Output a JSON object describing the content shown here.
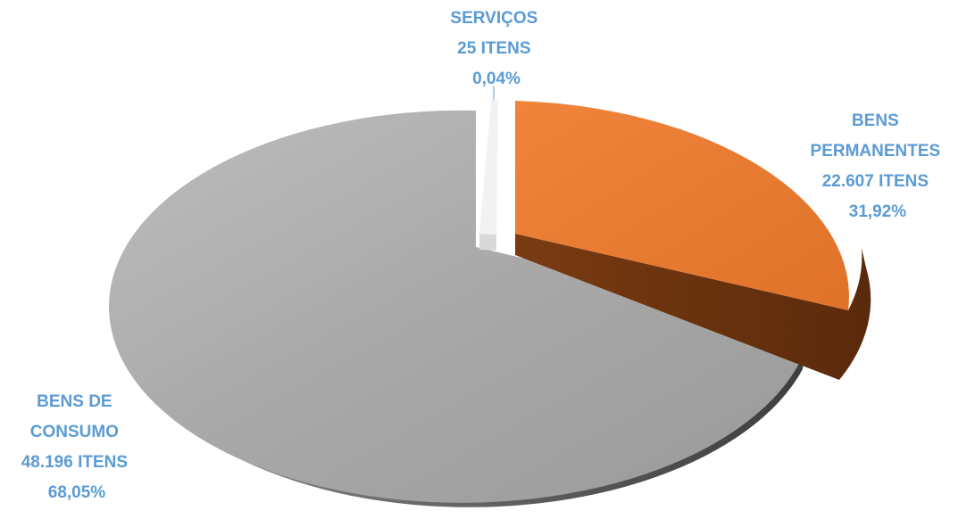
{
  "chart_data": {
    "type": "pie",
    "style": "3d-exploded",
    "slices": [
      {
        "name": "SERVIÇOS",
        "count_label": "25 ITENS",
        "percent_label": "0,04%",
        "items": 25,
        "percent": 0.04,
        "color": "#f2f2f2"
      },
      {
        "name": "BENS PERMANENTES",
        "name_lines": [
          "BENS",
          "PERMANENTES"
        ],
        "count_label": "22.607 ITENS",
        "percent_label": "31,92%",
        "items": 22607,
        "percent": 31.92,
        "color": "#ed7d31"
      },
      {
        "name": "BENS DE CONSUMO",
        "name_lines": [
          "BENS DE",
          "CONSUMO"
        ],
        "count_label": "48.196 ITENS",
        "percent_label": "68,05%",
        "items": 48196,
        "percent": 68.05,
        "color": "#a5a5a5"
      }
    ],
    "label_color": "#5b9bd5",
    "legend": "none"
  }
}
